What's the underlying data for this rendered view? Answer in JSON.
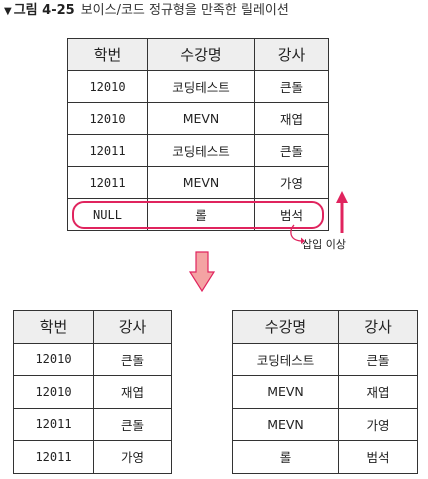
{
  "caption": {
    "marker": "▼",
    "figure": "그림 4-25",
    "title": "보이스/코드 정규형을 만족한 릴레이션"
  },
  "main_table": {
    "headers": [
      "학번",
      "수강명",
      "강사"
    ],
    "rows": [
      [
        "12010",
        "코딩테스트",
        "큰돌"
      ],
      [
        "12010",
        "MEVN",
        "재엽"
      ],
      [
        "12011",
        "코딩테스트",
        "큰돌"
      ],
      [
        "12011",
        "MEVN",
        "가영"
      ],
      [
        "NULL",
        "롤",
        "범석"
      ]
    ]
  },
  "annotation": "삽입 이상",
  "left_table": {
    "headers": [
      "학번",
      "강사"
    ],
    "rows": [
      [
        "12010",
        "큰돌"
      ],
      [
        "12010",
        "재엽"
      ],
      [
        "12011",
        "큰돌"
      ],
      [
        "12011",
        "가영"
      ]
    ]
  },
  "right_table": {
    "headers": [
      "수강명",
      "강사"
    ],
    "rows": [
      [
        "코딩테스트",
        "큰돌"
      ],
      [
        "MEVN",
        "재엽"
      ],
      [
        "MEVN",
        "가영"
      ],
      [
        "롤",
        "범석"
      ]
    ]
  },
  "colors": {
    "accent": "#e0245e",
    "arrow_fill": "#f4a3a3",
    "header_bg": "#eeeeee"
  }
}
